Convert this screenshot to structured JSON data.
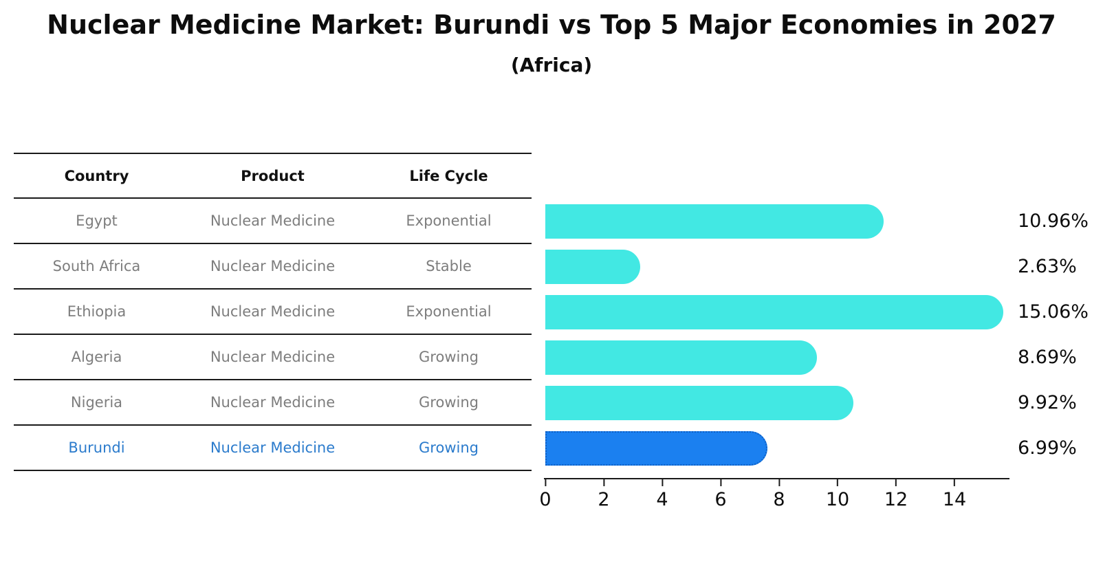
{
  "title": "Nuclear Medicine Market: Burundi vs Top 5 Major Economies in 2027",
  "subtitle": "(Africa)",
  "table": {
    "headers": [
      "Country",
      "Product",
      "Life Cycle"
    ],
    "rows": [
      {
        "country": "Egypt",
        "product": "Nuclear Medicine",
        "life_cycle": "Exponential"
      },
      {
        "country": "South Africa",
        "product": "Nuclear Medicine",
        "life_cycle": "Stable"
      },
      {
        "country": "Ethiopia",
        "product": "Nuclear Medicine",
        "life_cycle": "Exponential"
      },
      {
        "country": "Algeria",
        "product": "Nuclear Medicine",
        "life_cycle": "Growing"
      },
      {
        "country": "Nigeria",
        "product": "Nuclear Medicine",
        "life_cycle": "Growing"
      },
      {
        "country": "Burundi",
        "product": "Nuclear Medicine",
        "life_cycle": "Growing"
      }
    ]
  },
  "chart_data": {
    "type": "bar",
    "orientation": "horizontal",
    "categories": [
      "Egypt",
      "South Africa",
      "Ethiopia",
      "Algeria",
      "Nigeria",
      "Burundi"
    ],
    "values": [
      10.96,
      2.63,
      15.06,
      8.69,
      9.92,
      6.99
    ],
    "value_labels": [
      "10.96%",
      "2.63%",
      "15.06%",
      "8.69%",
      "9.92%",
      "6.99%"
    ],
    "x_ticks": [
      0,
      2,
      4,
      6,
      8,
      10,
      12,
      14
    ],
    "x_tick_labels": [
      "0",
      "2",
      "4",
      "6",
      "8",
      "10",
      "12",
      "14"
    ],
    "xlim": [
      0,
      15.8
    ],
    "grid": false,
    "legend_position": "none",
    "bar_color": "#42E8E3",
    "highlight_bar_color": "#1B80F0",
    "highlight_border_color": "#0E5FC4",
    "highlight_index": 5,
    "highlight_text_color": "#2b7bcc",
    "table_text_color": "#7d7d7d"
  }
}
